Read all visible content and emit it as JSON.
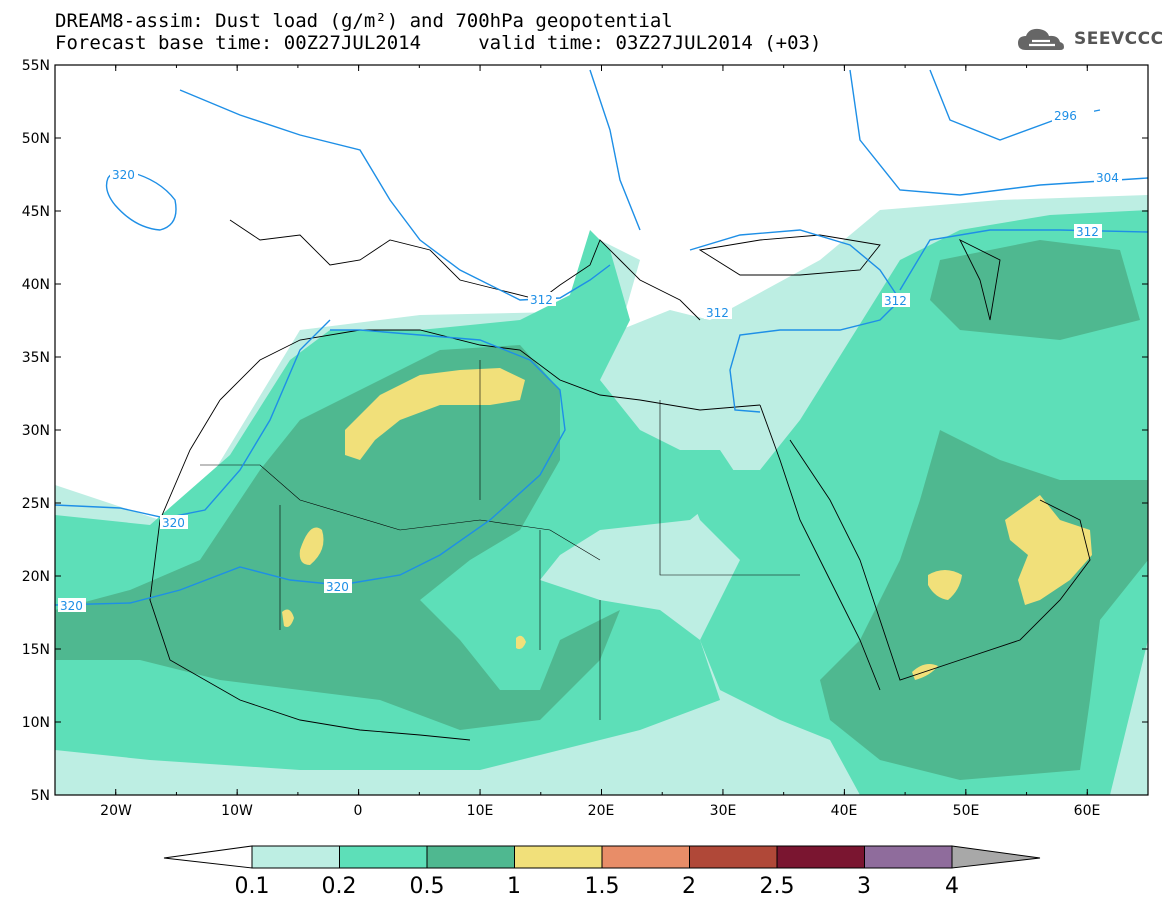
{
  "header": {
    "title_line1": "DREAM8-assim: Dust load (g/m²) and 700hPa geopotential",
    "title_line2": "Forecast base time: 00Z27JUL2014     valid time: 03Z27JUL2014 (+03)",
    "logo_text": "SEEVCCC"
  },
  "map": {
    "lon_range": [
      -25,
      65
    ],
    "lat_range": [
      5,
      55
    ],
    "lat_labels": [
      "55N",
      "50N",
      "45N",
      "40N",
      "35N",
      "30N",
      "25N",
      "20N",
      "15N",
      "10N",
      "5N"
    ],
    "lon_labels": [
      "20W",
      "10W",
      "0",
      "10E",
      "20E",
      "30E",
      "40E",
      "50E",
      "60E"
    ],
    "contour_labels": [
      "320",
      "320",
      "320",
      "320",
      "312",
      "312",
      "312",
      "312",
      "304",
      "296"
    ]
  },
  "legend": {
    "labels": [
      "0.1",
      "0.2",
      "0.5",
      "1",
      "1.5",
      "2",
      "2.5",
      "3",
      "4"
    ],
    "colors": [
      "#bdeee3",
      "#5ddfb8",
      "#4fb890",
      "#f1e07a",
      "#e88d68",
      "#b04838",
      "#7a1530",
      "#8f6c9c",
      "#a8a8a8"
    ],
    "unit": "g/m²"
  }
}
